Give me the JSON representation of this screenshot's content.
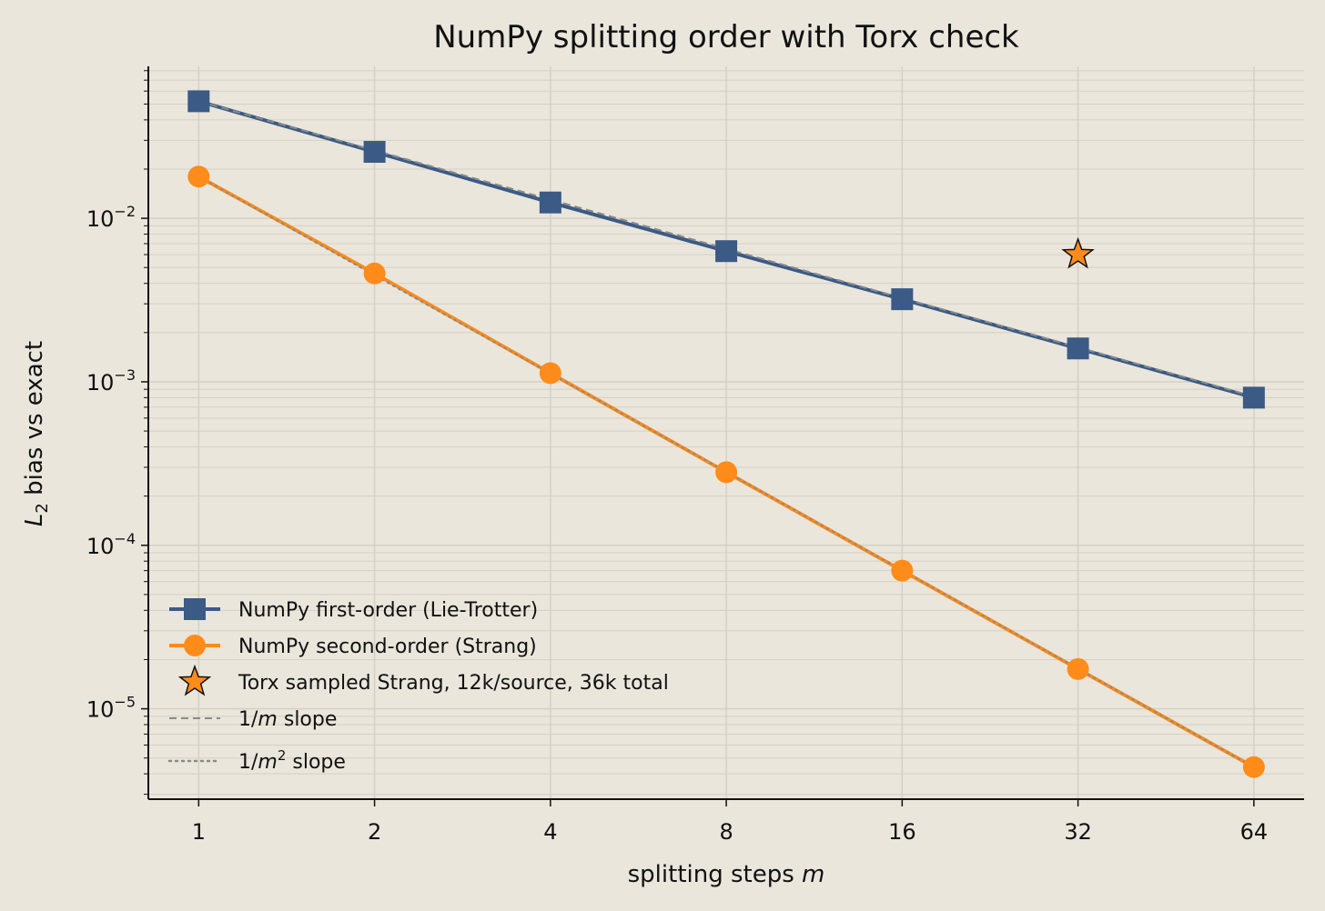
{
  "colors": {
    "background": "#eae6dc",
    "first_order": "#3b5a85",
    "second_order": "#ff8c1a",
    "torx_fill": "#ff8c1a",
    "torx_edge": "#111111",
    "ref_line": "#8a8a8a",
    "grid": "#d4d0c4"
  },
  "chart_data": {
    "type": "line",
    "title": "NumPy splitting order with Torx check",
    "xlabel": "splitting steps",
    "xlabel_var": "m",
    "ylabel_sub": "2",
    "ylabel_rest": " bias vs exact",
    "x_scale": "log2",
    "y_scale": "log10",
    "xlim": [
      0.82,
      78
    ],
    "ylim": [
      2.8e-06,
      0.085
    ],
    "x_ticks": [
      1,
      2,
      4,
      8,
      16,
      32,
      64
    ],
    "y_ticks": [
      {
        "base": "10",
        "exp": "−2",
        "value": 0.01
      },
      {
        "base": "10",
        "exp": "−3",
        "value": 0.001
      },
      {
        "base": "10",
        "exp": "−4",
        "value": 0.0001
      },
      {
        "base": "10",
        "exp": "−5",
        "value": 1e-05
      }
    ],
    "grid": true,
    "legend_position": "lower-left",
    "series": [
      {
        "name": "NumPy first-order (Lie-Trotter)",
        "marker": "square",
        "color_key": "first_order",
        "x": [
          1,
          2,
          4,
          8,
          16,
          32,
          64
        ],
        "y": [
          0.052,
          0.0255,
          0.0125,
          0.0063,
          0.0032,
          0.0016,
          0.0008
        ]
      },
      {
        "name": "NumPy second-order (Strang)",
        "marker": "circle",
        "color_key": "second_order",
        "x": [
          1,
          2,
          4,
          8,
          16,
          32,
          64
        ],
        "y": [
          0.018,
          0.0046,
          0.00113,
          0.00028,
          7e-05,
          1.75e-05,
          4.4e-06
        ]
      }
    ],
    "torx_point": {
      "name": "Torx sampled Strang, 12k/source, 36k total",
      "marker": "star",
      "x": 32,
      "y": 0.006
    },
    "reference_lines": [
      {
        "name_pre": "1/",
        "name_var": "m",
        "name_sup": "",
        "name_post": " slope",
        "style": "dashed",
        "x": [
          1,
          64
        ],
        "y": [
          0.052,
          0.0008125
        ]
      },
      {
        "name_pre": "1/",
        "name_var": "m",
        "name_sup": "2",
        "name_post": " slope",
        "style": "dotted",
        "x": [
          1,
          64
        ],
        "y": [
          0.018,
          4.3945e-06
        ]
      }
    ]
  }
}
